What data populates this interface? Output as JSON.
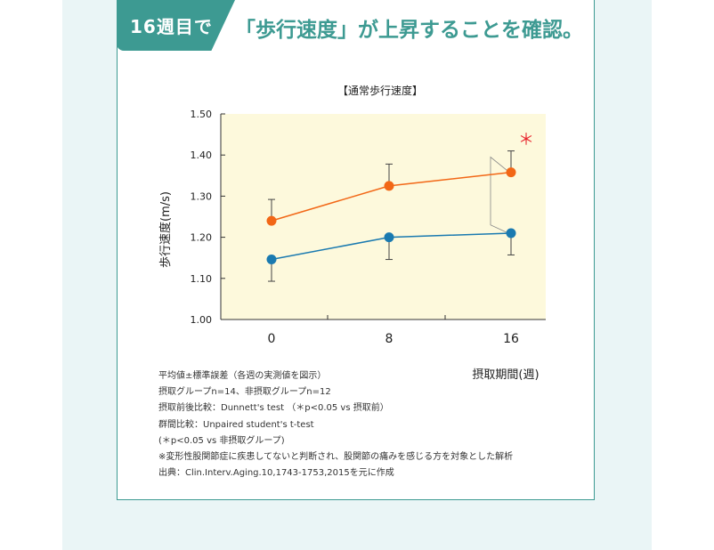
{
  "header": {
    "tab_label": "16週目で",
    "headline": "「歩行速度」が上昇することを確認。"
  },
  "colors": {
    "accent": "#3d9a92",
    "series_intake": "#f26716",
    "series_nonintake": "#1a7ab0",
    "plot_bg": "#fdf9dc",
    "significance": "#e8262f"
  },
  "chart_data": {
    "type": "line",
    "title": "【通常歩行速度】",
    "ylabel": "歩行速度(m/s)",
    "xlabel": "摂取期間(週)",
    "x": [
      0,
      8,
      16
    ],
    "x_tick_labels": [
      "0",
      "8",
      "16"
    ],
    "ylim": [
      1.0,
      1.5
    ],
    "y_ticks": [
      1.0,
      1.1,
      1.2,
      1.3,
      1.4,
      1.5
    ],
    "y_tick_labels": [
      "1.00",
      "1.10",
      "1.20",
      "1.30",
      "1.40",
      "1.50"
    ],
    "series": [
      {
        "color": "#f26716",
        "values": [
          1.24,
          1.325,
          1.358
        ],
        "error_upper": [
          1.292,
          1.378,
          1.41
        ],
        "error_lower": [
          null,
          null,
          null
        ]
      },
      {
        "color": "#1a7ab0",
        "values": [
          1.146,
          1.2,
          1.21
        ],
        "error_upper": [
          null,
          null,
          null
        ],
        "error_lower": [
          1.093,
          1.146,
          1.157
        ]
      }
    ],
    "annotation": "＊",
    "grid": false
  },
  "notes": [
    "平均値±標準誤差（各週の実測値を図示）",
    "摂取グループn=14、非摂取グループn=12",
    "摂取前後比較：Dunnett's test （＊p<0.05 vs 摂取前）",
    "群間比較：Unpaired student's t-test",
    "(＊p<0.05 vs 非摂取グループ)",
    "※変形性股関節症に疾患してないと判断され、股関節の痛みを感じる方を対象とした解析",
    "出典：Clin.Interv.Aging.10,1743-1753,2015を元に作成"
  ]
}
